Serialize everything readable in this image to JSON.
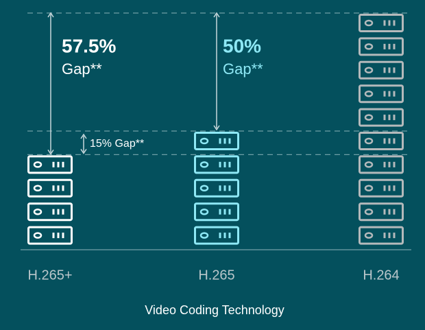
{
  "chart_data": {
    "type": "pictogram",
    "categories": [
      "H.265+",
      "H.265",
      "H.264"
    ],
    "values": [
      4,
      5,
      10
    ],
    "colors": [
      "#ffffff",
      "#8ee8f5",
      "#b4b9bb"
    ],
    "x_label": "Video Coding Technology",
    "annotations": [
      {
        "value": "57.5%",
        "text": "Gap**"
      },
      {
        "value": "50%",
        "text": "Gap**"
      },
      {
        "text": "15% Gap**"
      }
    ]
  }
}
